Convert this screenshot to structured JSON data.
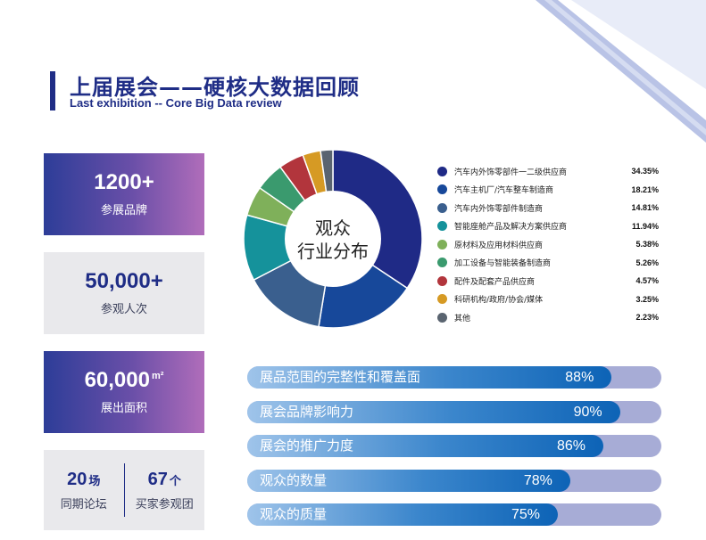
{
  "header": {
    "title": "上届展会——硬核大数据回顾",
    "subtitle": "Last exhibition -- Core Big Data review"
  },
  "stats": [
    {
      "value": "1200+",
      "unit": "",
      "label": "参展品牌"
    },
    {
      "value": "50,000+",
      "unit": "",
      "label": "参观人次"
    },
    {
      "value": "60,000",
      "unit": "m²",
      "label": "展出面积"
    }
  ],
  "split_stat": [
    {
      "value": "20",
      "unit": "场",
      "label": "同期论坛"
    },
    {
      "value": "67",
      "unit": "个",
      "label": "买家参观团"
    }
  ],
  "chart_data": [
    {
      "type": "pie",
      "title": "观众行业分布",
      "categories": [
        "汽车内外饰零部件一二级供应商",
        "汽车主机厂/汽车整车制造商",
        "汽车内外饰零部件制造商",
        "智能座舱产品及解决方案供应商",
        "原材料及应用材料供应商",
        "加工设备与智能装备制造商",
        "配件及配套产品供应商",
        "科研机构/政府/协会/媒体",
        "其他"
      ],
      "values": [
        34.35,
        18.21,
        14.81,
        11.94,
        5.38,
        5.26,
        4.57,
        3.25,
        2.23
      ],
      "value_labels": [
        "34.35%",
        "18.21%",
        "14.81%",
        "11.94%",
        "5.38%",
        "5.26%",
        "4.57%",
        "3.25%",
        "2.23%"
      ],
      "colors": [
        "#1f2a86",
        "#17489a",
        "#3a5f8e",
        "#15929b",
        "#7fb05a",
        "#3a9a6e",
        "#b2353c",
        "#d69a24",
        "#5a6470"
      ],
      "legend": "right"
    },
    {
      "type": "bar",
      "orientation": "horizontal",
      "categories": [
        "展品范围的完整性和覆盖面",
        "展会品牌影响力",
        "展会的推广力度",
        "观众的数量",
        "观众的质量"
      ],
      "values": [
        88,
        90,
        86,
        78,
        75
      ],
      "value_labels": [
        "88%",
        "90%",
        "86%",
        "78%",
        "75%"
      ],
      "xlim": [
        0,
        100
      ]
    }
  ]
}
